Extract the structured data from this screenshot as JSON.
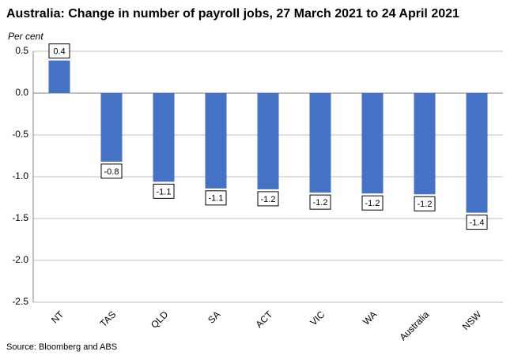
{
  "chart_data": {
    "type": "bar",
    "title": "Australia: Change in number of payroll jobs, 27 March 2021 to 24 April 2021",
    "y_label": "Per cent",
    "source": "Source: Bloomberg and ABS",
    "categories": [
      "NT",
      "TAS",
      "QLD",
      "SA",
      "ACT",
      "VIC",
      "WA",
      "Australia",
      "NSW"
    ],
    "values": [
      0.39,
      -0.82,
      -1.06,
      -1.14,
      -1.15,
      -1.19,
      -1.2,
      -1.21,
      -1.43
    ],
    "value_labels": [
      "0.4",
      "-0.8",
      "-1.1",
      "-1.1",
      "-1.2",
      "-1.2",
      "-1.2",
      "-1.2",
      "-1.4"
    ],
    "color": "#4472c4",
    "ylim": [
      -2.5,
      0.5
    ],
    "yticks": [
      0.5,
      {
        "value": 0,
        "label": "0.0"
      },
      -0.5,
      {
        "value": -1,
        "label": "-1.0"
      },
      -1.5,
      {
        "value": -2,
        "label": "-2.0"
      },
      -2.5
    ],
    "grid": true
  }
}
